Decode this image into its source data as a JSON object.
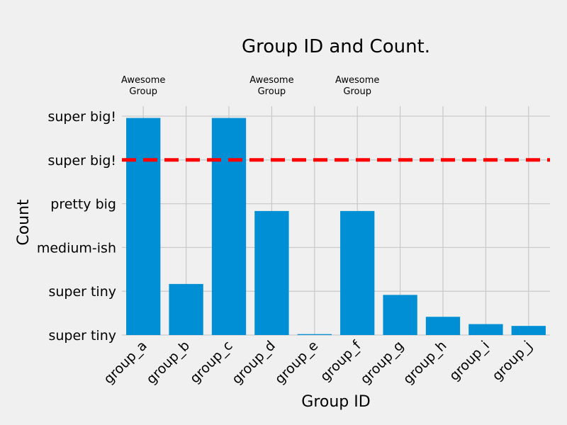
{
  "chart_data": {
    "type": "bar",
    "title": "Group ID and Count.",
    "xlabel": "Group ID",
    "ylabel": "Count",
    "categories": [
      "group_a",
      "group_b",
      "group_c",
      "group_d",
      "group_e",
      "group_f",
      "group_g",
      "group_h",
      "group_i",
      "group_j"
    ],
    "values": [
      119,
      28,
      119,
      68,
      0.5,
      68,
      22,
      10,
      6,
      5
    ],
    "ylim": [
      0,
      120
    ],
    "yticks": [
      {
        "value": 0,
        "label": "super tiny"
      },
      {
        "value": 24,
        "label": "super tiny"
      },
      {
        "value": 48,
        "label": "medium-ish"
      },
      {
        "value": 72,
        "label": "pretty big"
      },
      {
        "value": 96,
        "label": "super big!"
      },
      {
        "value": 120,
        "label": "super big!"
      }
    ],
    "hline": {
      "value": 96,
      "color": "#ff0000",
      "style": "dashed"
    },
    "annotations": [
      {
        "category": "group_a",
        "lines": [
          "Awesome",
          "Group"
        ]
      },
      {
        "category": "group_d",
        "lines": [
          "Awesome",
          "Group"
        ]
      },
      {
        "category": "group_f",
        "lines": [
          "Awesome",
          "Group"
        ]
      }
    ],
    "grid": true,
    "bar_color": "#008fd5",
    "grid_color": "#cbcbcb",
    "background": "#f0f0f0"
  }
}
